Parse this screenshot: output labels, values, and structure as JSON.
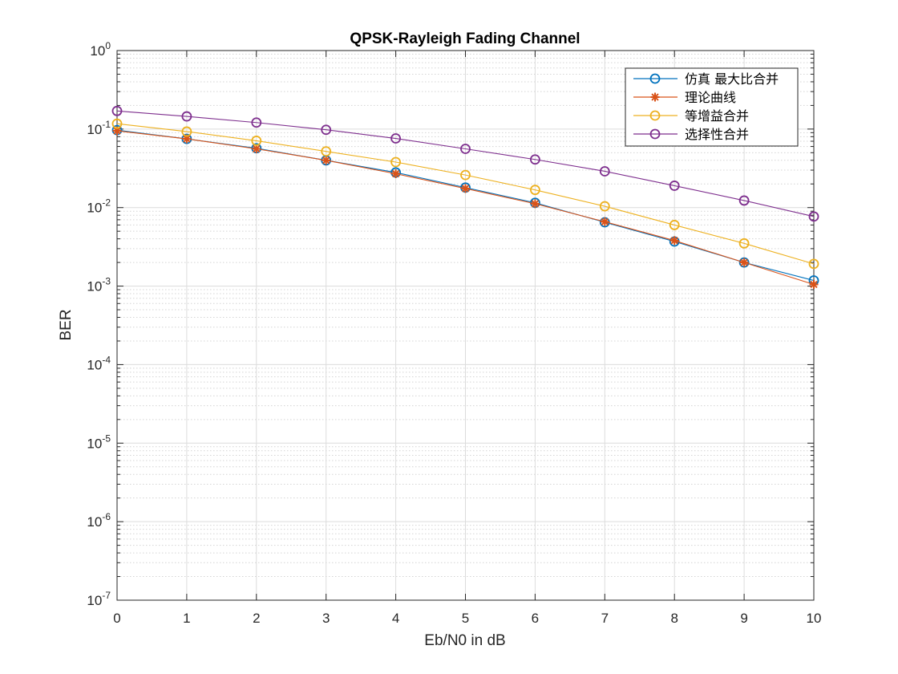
{
  "chart_data": {
    "type": "line",
    "title": "QPSK-Rayleigh Fading Channel",
    "xlabel": "Eb/N0 in dB",
    "ylabel": "BER",
    "xlim": [
      0,
      10
    ],
    "ylim": [
      1e-07,
      1
    ],
    "yscale": "log",
    "grid": true,
    "minor_grid": true,
    "legend_position": "top-right",
    "x": [
      0,
      1,
      2,
      3,
      4,
      5,
      6,
      7,
      8,
      9,
      10
    ],
    "x_tick_labels": [
      "0",
      "1",
      "2",
      "3",
      "4",
      "5",
      "6",
      "7",
      "8",
      "9",
      "10"
    ],
    "y_ticks": [
      {
        "base": "10",
        "exp": "0"
      },
      {
        "base": "10",
        "exp": "-1"
      },
      {
        "base": "10",
        "exp": "-2"
      },
      {
        "base": "10",
        "exp": "-3"
      },
      {
        "base": "10",
        "exp": "-4"
      },
      {
        "base": "10",
        "exp": "-5"
      },
      {
        "base": "10",
        "exp": "-6"
      },
      {
        "base": "10",
        "exp": "-7"
      }
    ],
    "series": [
      {
        "name": "仿真 最大比合并",
        "color": "#0072BD",
        "marker": "circle",
        "values": [
          0.097,
          0.075,
          0.057,
          0.04,
          0.028,
          0.018,
          0.0115,
          0.0065,
          0.0037,
          0.002,
          0.00118
        ]
      },
      {
        "name": "理论曲线",
        "color": "#D95319",
        "marker": "asterisk",
        "values": [
          0.095,
          0.075,
          0.056,
          0.04,
          0.027,
          0.0175,
          0.0112,
          0.0066,
          0.0038,
          0.002,
          0.00105
        ]
      },
      {
        "name": "等增益合并",
        "color": "#EDB120",
        "marker": "circle",
        "values": [
          0.117,
          0.093,
          0.071,
          0.052,
          0.038,
          0.026,
          0.0168,
          0.0104,
          0.006,
          0.0035,
          0.00192
        ]
      },
      {
        "name": "选择性合并",
        "color": "#7E2F8E",
        "marker": "circle",
        "values": [
          0.17,
          0.145,
          0.121,
          0.098,
          0.076,
          0.056,
          0.041,
          0.029,
          0.019,
          0.0123,
          0.0077
        ]
      }
    ]
  }
}
